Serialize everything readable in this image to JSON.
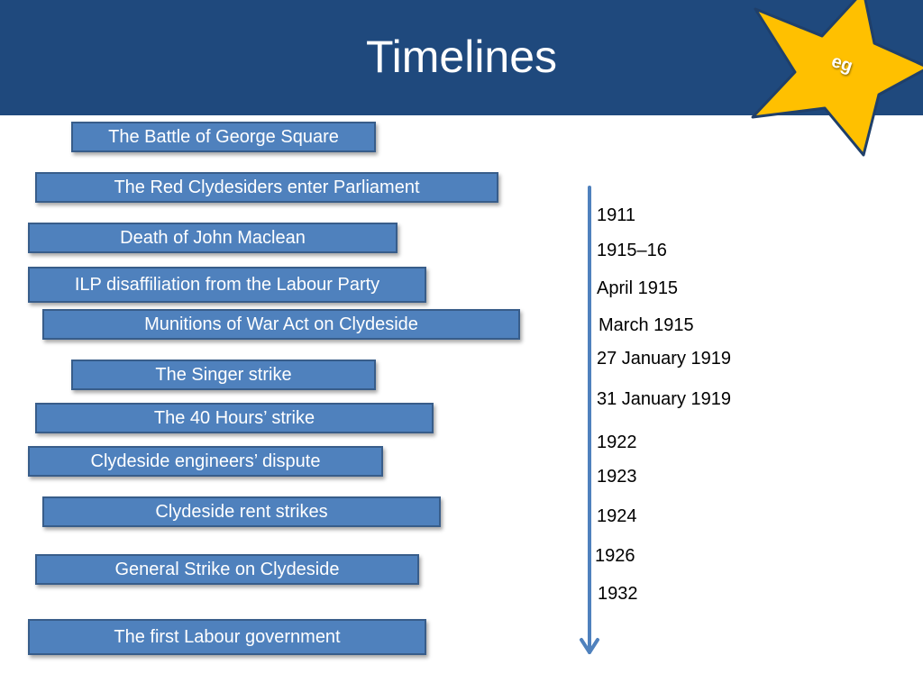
{
  "slide": {
    "title": "Timelines",
    "badge": {
      "label": "eg",
      "color": "#ffc000"
    },
    "colors": {
      "header": "#1f497d",
      "event_box": "#4f81bd",
      "event_border": "#385d8a",
      "arrow": "#4f81bd"
    }
  },
  "events": [
    "The Battle of George Square",
    "The Red Clydesiders enter Parliament",
    "Death of John Maclean",
    "ILP disaffiliation from the Labour Party",
    "Munitions of War Act on Clydeside",
    "The Singer strike",
    "The 40 Hours’ strike",
    "Clydeside engineers’ dispute",
    "Clydeside rent strikes",
    "General Strike on Clydeside",
    "The first Labour government"
  ],
  "dates": [
    "1911",
    "1915–16",
    "April 1915",
    "March 1915",
    "27 January 1919",
    "31 January 1919",
    "1922",
    "1923",
    "1924",
    "1926",
    "1932"
  ]
}
